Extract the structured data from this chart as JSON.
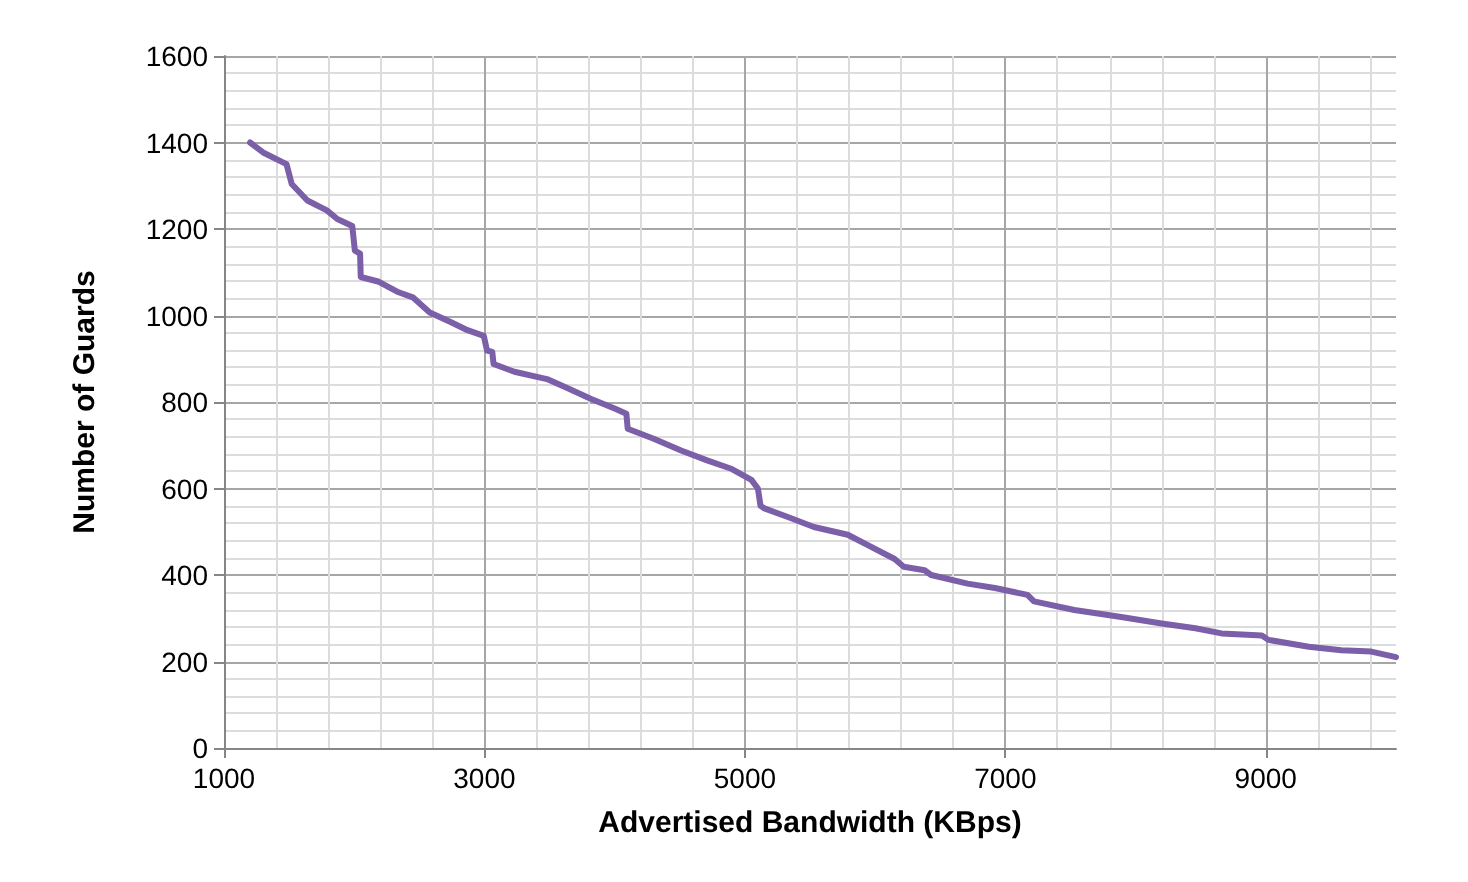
{
  "chart_data": {
    "type": "line",
    "xlabel": "Advertised Bandwidth (KBps)",
    "ylabel": "Number of Guards",
    "series": [
      {
        "color": "#7b5fa8",
        "x": [
          1200,
          1300,
          1480,
          1520,
          1640,
          1790,
          1870,
          1985,
          2005,
          2045,
          2050,
          2190,
          2330,
          2450,
          2580,
          2740,
          2870,
          2995,
          3020,
          3060,
          3070,
          3230,
          3480,
          3640,
          3820,
          4000,
          4090,
          4100,
          4300,
          4510,
          4710,
          4900,
          5050,
          5100,
          5120,
          5150,
          5330,
          5530,
          5790,
          5970,
          6150,
          6220,
          6380,
          6430,
          6710,
          6920,
          7170,
          7220,
          7530,
          7890,
          8200,
          8460,
          8660,
          8970,
          9020,
          9330,
          9580,
          9810,
          10000
        ],
        "values": [
          1400,
          1377,
          1350,
          1304,
          1266,
          1243,
          1223,
          1207,
          1150,
          1143,
          1089,
          1078,
          1055,
          1042,
          1007,
          985,
          966,
          953,
          919,
          916,
          888,
          870,
          853,
          832,
          807,
          785,
          773,
          738,
          715,
          688,
          665,
          645,
          620,
          600,
          560,
          554,
          534,
          511,
          493,
          465,
          437,
          419,
          411,
          400,
          380,
          370,
          354,
          339,
          319,
          303,
          288,
          277,
          265,
          260,
          250,
          234,
          226,
          223,
          210
        ]
      }
    ],
    "xlim": [
      1000,
      10000
    ],
    "xticks": [
      1000,
      3000,
      5000,
      7000,
      9000
    ],
    "ylim": [
      0,
      1600
    ],
    "yticks": [
      0,
      200,
      400,
      600,
      800,
      1000,
      1200,
      1400,
      1600
    ],
    "grid": true,
    "marker": "none",
    "line_style": "solid"
  }
}
